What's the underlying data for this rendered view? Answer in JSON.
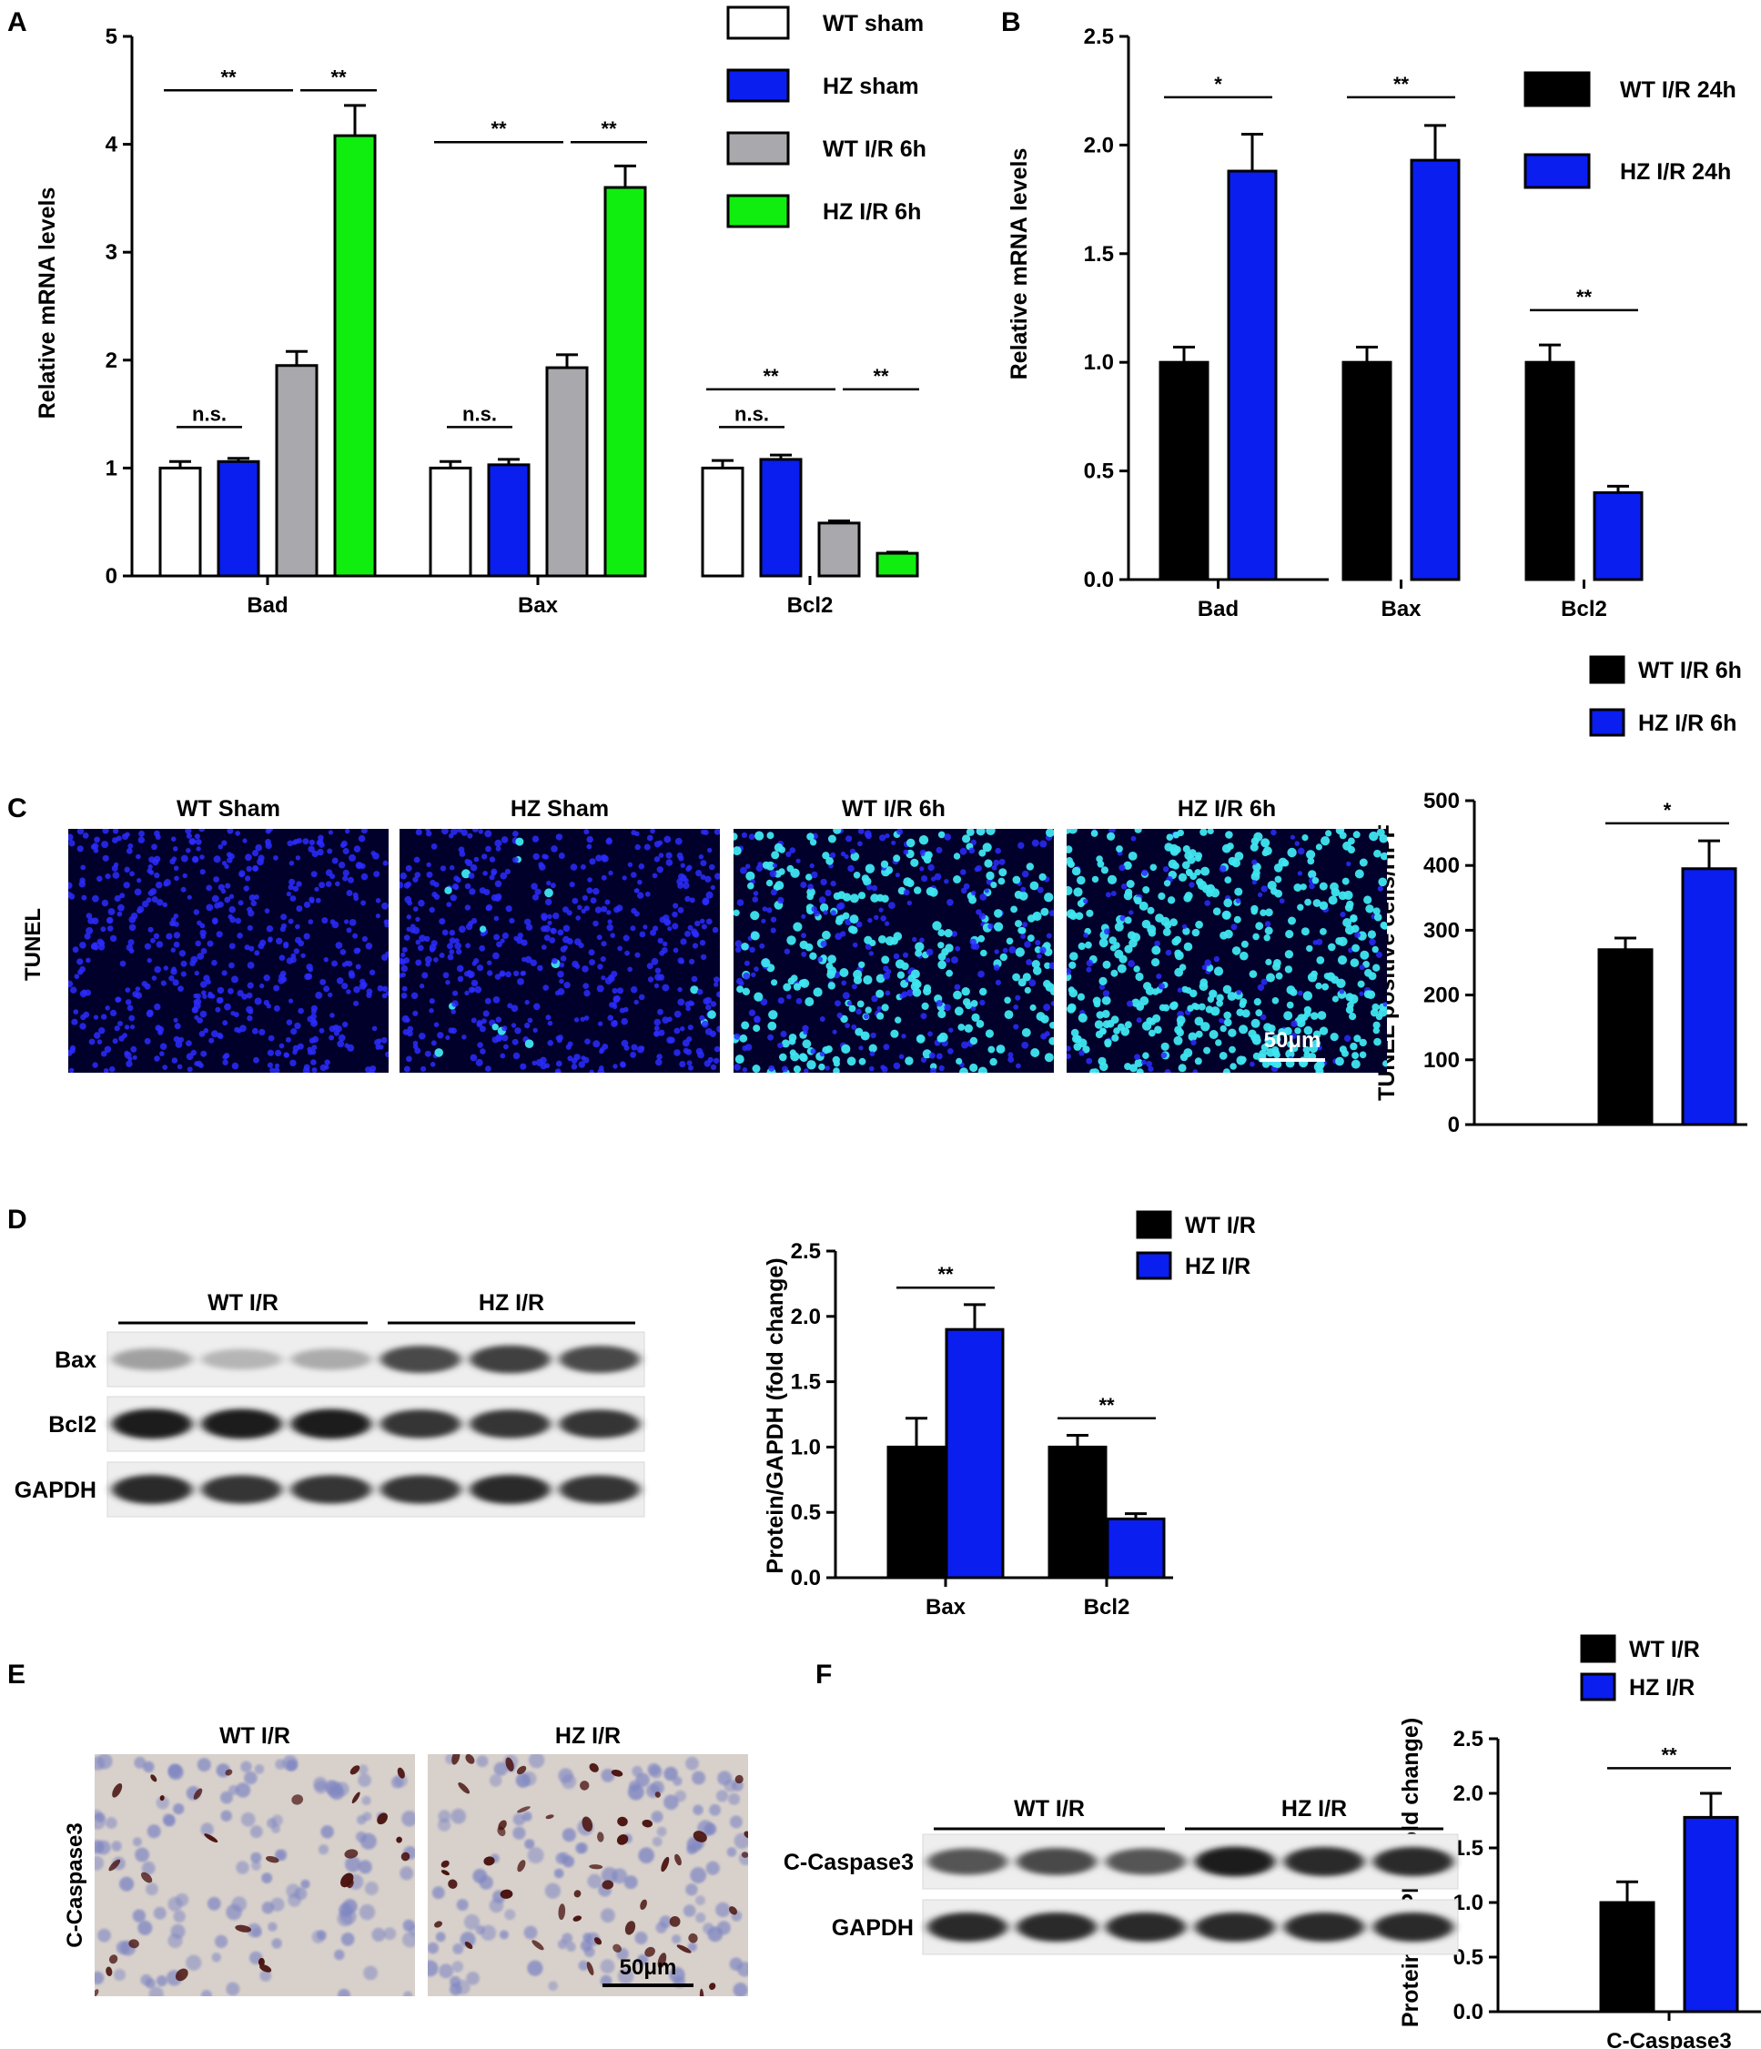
{
  "colors": {
    "white": "#ffffff",
    "blue": "#0a1ef0",
    "gray": "#a9a9ad",
    "green": "#10ee10",
    "black": "#000000",
    "tunel_dark": "#00002a",
    "tunel_blue": "#2c2cff",
    "tunel_cyan": "#3fe6f0",
    "ihc_bg": "#d7d0cb",
    "ihc_brown": "#4a1410",
    "ihc_nuc": "#7f86c2"
  },
  "panels": {
    "A": "A",
    "B": "B",
    "C": "C",
    "D": "D",
    "E": "E",
    "F": "F"
  },
  "chart_data": [
    {
      "id": "A",
      "type": "bar",
      "ylabel": "Relative mRNA levels",
      "ylim": [
        0,
        5
      ],
      "yticks": [
        "0",
        "1",
        "2",
        "3",
        "4",
        "5"
      ],
      "categories": [
        "Bad",
        "Bax",
        "Bcl2"
      ],
      "legend": [
        "WT sham",
        "HZ sham",
        "WT I/R 6h",
        "HZ I/R 6h"
      ],
      "series": [
        {
          "name": "WT sham",
          "color": "#ffffff",
          "values": [
            1.0,
            1.0,
            1.0
          ],
          "errors": [
            0.06,
            0.06,
            0.07
          ]
        },
        {
          "name": "HZ sham",
          "color": "#0a1ef0",
          "values": [
            1.06,
            1.03,
            1.08
          ],
          "errors": [
            0.03,
            0.05,
            0.04
          ]
        },
        {
          "name": "WT I/R 6h",
          "color": "#a9a9ad",
          "values": [
            1.95,
            1.93,
            0.49
          ],
          "errors": [
            0.13,
            0.12,
            0.02
          ]
        },
        {
          "name": "HZ I/R 6h",
          "color": "#10ee10",
          "values": [
            4.08,
            3.6,
            0.21
          ],
          "errors": [
            0.28,
            0.2,
            0.01
          ]
        }
      ],
      "brackets": [
        {
          "group": 0,
          "from": 0,
          "to": 1,
          "y": 1.38,
          "label": "n.s."
        },
        {
          "group": 0,
          "from": 0,
          "to": 2,
          "y": 4.5,
          "label": "**"
        },
        {
          "group": 0,
          "from": 2,
          "to": 3,
          "y": 4.5,
          "label": "**"
        },
        {
          "group": 1,
          "from": 0,
          "to": 1,
          "y": 1.38,
          "label": "n.s."
        },
        {
          "group": 1,
          "from": 0,
          "to": 2,
          "y": 4.02,
          "label": "**"
        },
        {
          "group": 1,
          "from": 2,
          "to": 3,
          "y": 4.02,
          "label": "**"
        },
        {
          "group": 2,
          "from": 0,
          "to": 1,
          "y": 1.38,
          "label": "n.s."
        },
        {
          "group": 2,
          "from": 0,
          "to": 2,
          "y": 1.73,
          "label": "**"
        },
        {
          "group": 2,
          "from": 2,
          "to": 3,
          "y": 1.73,
          "label": "**"
        }
      ]
    },
    {
      "id": "B",
      "type": "bar",
      "ylabel": "Relative mRNA levels",
      "ylim": [
        0,
        2.5
      ],
      "yticks": [
        "0.0",
        "0.5",
        "1.0",
        "1.5",
        "2.0",
        "2.5"
      ],
      "categories": [
        "Bad",
        "Bax",
        "Bcl2"
      ],
      "legend": [
        "WT I/R 24h",
        "HZ I/R 24h"
      ],
      "series": [
        {
          "name": "WT I/R 24h",
          "color": "#000000",
          "values": [
            1.0,
            1.0,
            1.0
          ],
          "errors": [
            0.07,
            0.07,
            0.08
          ]
        },
        {
          "name": "HZ I/R 24h",
          "color": "#0a1ef0",
          "values": [
            1.88,
            1.93,
            0.4
          ],
          "errors": [
            0.17,
            0.16,
            0.03
          ]
        }
      ],
      "brackets": [
        {
          "group": 0,
          "from": 0,
          "to": 1,
          "y": 2.22,
          "label": "*"
        },
        {
          "group": 1,
          "from": 0,
          "to": 1,
          "y": 2.22,
          "label": "**"
        },
        {
          "group": 2,
          "from": 0,
          "to": 1,
          "y": 1.24,
          "label": "**"
        }
      ]
    },
    {
      "id": "C",
      "type": "bar",
      "ylabel": "TUNEL positive cells/HPF",
      "ylim": [
        0,
        500
      ],
      "yticks": [
        "0",
        "100",
        "200",
        "300",
        "400",
        "500"
      ],
      "categories": [
        ""
      ],
      "legend": [
        "WT I/R 6h",
        "HZ I/R 6h"
      ],
      "series": [
        {
          "name": "WT I/R 6h",
          "color": "#000000",
          "values": [
            270
          ],
          "errors": [
            18
          ]
        },
        {
          "name": "HZ I/R 6h",
          "color": "#0a1ef0",
          "values": [
            395
          ],
          "errors": [
            43
          ]
        }
      ],
      "brackets": [
        {
          "group": 0,
          "from": 0,
          "to": 1,
          "y": 465,
          "label": "*"
        }
      ]
    },
    {
      "id": "D",
      "type": "bar",
      "ylabel": "Protein/GAPDH (fold change)",
      "ylim": [
        0,
        2.5
      ],
      "yticks": [
        "0.0",
        "0.5",
        "1.0",
        "1.5",
        "2.0",
        "2.5"
      ],
      "categories": [
        "Bax",
        "Bcl2"
      ],
      "legend": [
        "WT I/R",
        "HZ I/R"
      ],
      "series": [
        {
          "name": "WT I/R",
          "color": "#000000",
          "values": [
            1.0,
            1.0
          ],
          "errors": [
            0.22,
            0.09
          ]
        },
        {
          "name": "HZ I/R",
          "color": "#0a1ef0",
          "values": [
            1.9,
            0.45
          ],
          "errors": [
            0.19,
            0.04
          ]
        }
      ],
      "brackets": [
        {
          "group": 0,
          "from": 0,
          "to": 1,
          "y": 2.22,
          "label": "**"
        },
        {
          "group": 1,
          "from": 0,
          "to": 1,
          "y": 1.22,
          "label": "**"
        }
      ]
    },
    {
      "id": "F",
      "type": "bar",
      "ylabel": "Protein/GAPDH(fold change)",
      "ylim": [
        0,
        2.5
      ],
      "yticks": [
        "0.0",
        "0.5",
        "1.0",
        "1.5",
        "2.0",
        "2.5"
      ],
      "categories": [
        "C-Caspase3"
      ],
      "legend": [
        "WT I/R",
        "HZ I/R"
      ],
      "series": [
        {
          "name": "WT I/R",
          "color": "#000000",
          "values": [
            1.0
          ],
          "errors": [
            0.19
          ]
        },
        {
          "name": "HZ I/R",
          "color": "#0a1ef0",
          "values": [
            1.78
          ],
          "errors": [
            0.22
          ]
        }
      ],
      "brackets": [
        {
          "group": 0,
          "from": 0,
          "to": 1,
          "y": 2.23,
          "label": "**"
        }
      ]
    }
  ],
  "tunel": {
    "row_label": "TUNEL",
    "images": [
      {
        "title": "WT Sham",
        "apoptotic": 0.0
      },
      {
        "title": "HZ Sham",
        "apoptotic": 0.03
      },
      {
        "title": "WT I/R 6h",
        "apoptotic": 0.55
      },
      {
        "title": "HZ I/R 6h",
        "apoptotic": 0.8
      }
    ],
    "scale_label": "50μm"
  },
  "blot_d": {
    "groups": [
      "WT I/R",
      "HZ I/R"
    ],
    "rows": [
      {
        "label": "Bax",
        "intensity": [
          0.35,
          0.25,
          0.3,
          0.75,
          0.8,
          0.75
        ]
      },
      {
        "label": "Bcl2",
        "intensity": [
          0.95,
          0.95,
          0.95,
          0.85,
          0.85,
          0.85
        ]
      },
      {
        "label": "GAPDH",
        "intensity": [
          0.9,
          0.85,
          0.85,
          0.85,
          0.9,
          0.85
        ]
      }
    ]
  },
  "ihc": {
    "row_label": "C-Caspase3",
    "images": [
      {
        "title": "WT I/R",
        "stained": 0.45
      },
      {
        "title": "HZ I/R",
        "stained": 0.85
      }
    ],
    "scale_label": "50μm"
  },
  "blot_f": {
    "groups": [
      "WT I/R",
      "HZ I/R"
    ],
    "rows": [
      {
        "label": "C-Caspase3",
        "intensity": [
          0.7,
          0.75,
          0.7,
          0.95,
          0.9,
          0.9
        ]
      },
      {
        "label": "GAPDH",
        "intensity": [
          0.9,
          0.9,
          0.9,
          0.9,
          0.9,
          0.9
        ]
      }
    ]
  }
}
